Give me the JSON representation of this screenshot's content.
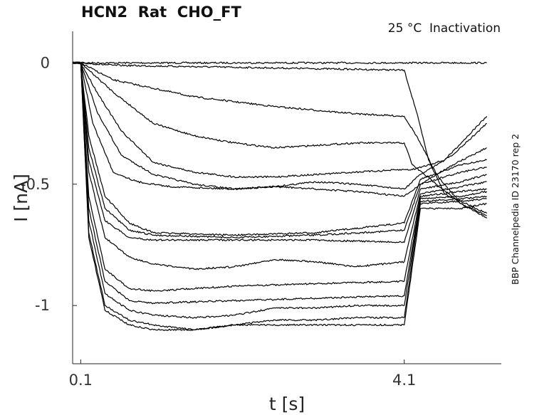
{
  "chart_data": {
    "type": "line",
    "title": "HCN2  Rat  CHO_FT",
    "annotation": "25 °C  Inactivation",
    "side_label": "BBP Channelpedia ID 23170 rep 2",
    "xlabel": "t [s]",
    "ylabel": "I [nA]",
    "xlim": [
      0.0,
      5.3
    ],
    "ylim": [
      -1.24,
      0.13
    ],
    "x_ticks": [
      {
        "value": 0.1,
        "label": "0.1"
      },
      {
        "value": 4.1,
        "label": "4.1"
      }
    ],
    "y_ticks": [
      {
        "value": 0,
        "label": "0"
      },
      {
        "value": -0.5,
        "label": "-0.5"
      },
      {
        "value": -1,
        "label": "-1"
      }
    ],
    "grid": false,
    "legend": "none",
    "line_color": "#000000",
    "series": [
      {
        "values": [
          [
            0.0,
            0.0
          ],
          [
            0.1,
            0.0
          ],
          [
            4.1,
            0.0
          ],
          [
            4.1,
            0.0
          ],
          [
            5.12,
            0.0
          ]
        ]
      },
      {
        "values": [
          [
            0.0,
            0.0
          ],
          [
            0.1,
            0.0
          ],
          [
            0.5,
            -0.01
          ],
          [
            4.1,
            -0.03
          ],
          [
            4.25,
            -0.2
          ],
          [
            4.4,
            -0.4
          ],
          [
            4.6,
            -0.54
          ],
          [
            5.12,
            -0.62
          ]
        ]
      },
      {
        "values": [
          [
            0.0,
            0.0
          ],
          [
            0.1,
            0.0
          ],
          [
            0.5,
            -0.07
          ],
          [
            1.5,
            -0.14
          ],
          [
            2.5,
            -0.18
          ],
          [
            3.5,
            -0.21
          ],
          [
            4.1,
            -0.22
          ],
          [
            4.25,
            -0.3
          ],
          [
            4.5,
            -0.46
          ],
          [
            4.8,
            -0.58
          ],
          [
            5.12,
            -0.63
          ]
        ]
      },
      {
        "values": [
          [
            0.0,
            0.0
          ],
          [
            0.1,
            0.0
          ],
          [
            0.5,
            -0.12
          ],
          [
            1.0,
            -0.25
          ],
          [
            1.5,
            -0.3
          ],
          [
            2.0,
            -0.33
          ],
          [
            2.5,
            -0.35
          ],
          [
            3.0,
            -0.34
          ],
          [
            3.5,
            -0.33
          ],
          [
            4.1,
            -0.33
          ],
          [
            4.2,
            -0.42
          ],
          [
            4.5,
            -0.5
          ],
          [
            4.8,
            -0.58
          ],
          [
            5.12,
            -0.64
          ]
        ]
      },
      {
        "values": [
          [
            0.0,
            0.0
          ],
          [
            0.1,
            0.0
          ],
          [
            0.3,
            -0.12
          ],
          [
            0.6,
            -0.28
          ],
          [
            1.0,
            -0.41
          ],
          [
            1.5,
            -0.45
          ],
          [
            2.0,
            -0.47
          ],
          [
            2.5,
            -0.47
          ],
          [
            3.0,
            -0.46
          ],
          [
            3.5,
            -0.45
          ],
          [
            4.1,
            -0.44
          ],
          [
            4.2,
            -0.44
          ],
          [
            4.6,
            -0.4
          ],
          [
            5.12,
            -0.22
          ]
        ]
      },
      {
        "values": [
          [
            0.0,
            0.0
          ],
          [
            0.1,
            0.0
          ],
          [
            0.3,
            -0.2
          ],
          [
            0.6,
            -0.38
          ],
          [
            1.0,
            -0.46
          ],
          [
            1.5,
            -0.5
          ],
          [
            2.0,
            -0.52
          ],
          [
            2.5,
            -0.51
          ],
          [
            3.0,
            -0.49
          ],
          [
            3.5,
            -0.5
          ],
          [
            4.1,
            -0.52
          ],
          [
            4.3,
            -0.46
          ],
          [
            4.7,
            -0.38
          ],
          [
            5.12,
            -0.25
          ]
        ]
      },
      {
        "values": [
          [
            0.0,
            0.0
          ],
          [
            0.1,
            0.0
          ],
          [
            0.25,
            -0.25
          ],
          [
            0.5,
            -0.45
          ],
          [
            0.8,
            -0.49
          ],
          [
            1.2,
            -0.51
          ],
          [
            2.0,
            -0.52
          ],
          [
            2.5,
            -0.51
          ],
          [
            3.0,
            -0.52
          ],
          [
            3.5,
            -0.53
          ],
          [
            4.1,
            -0.55
          ],
          [
            4.3,
            -0.5
          ],
          [
            4.7,
            -0.42
          ],
          [
            5.12,
            -0.35
          ]
        ]
      },
      {
        "values": [
          [
            0.0,
            0.0
          ],
          [
            0.1,
            0.0
          ],
          [
            0.2,
            -0.3
          ],
          [
            0.4,
            -0.55
          ],
          [
            0.7,
            -0.66
          ],
          [
            1.0,
            -0.7
          ],
          [
            2.0,
            -0.71
          ],
          [
            3.0,
            -0.7
          ],
          [
            4.1,
            -0.66
          ],
          [
            4.3,
            -0.48
          ],
          [
            4.8,
            -0.42
          ],
          [
            5.12,
            -0.4
          ]
        ]
      },
      {
        "values": [
          [
            0.0,
            0.0
          ],
          [
            0.1,
            0.0
          ],
          [
            0.2,
            -0.35
          ],
          [
            0.4,
            -0.6
          ],
          [
            0.7,
            -0.69
          ],
          [
            1.0,
            -0.71
          ],
          [
            2.0,
            -0.72
          ],
          [
            3.0,
            -0.71
          ],
          [
            4.1,
            -0.69
          ],
          [
            4.3,
            -0.5
          ],
          [
            4.8,
            -0.45
          ],
          [
            5.12,
            -0.43
          ]
        ]
      },
      {
        "values": [
          [
            0.0,
            0.0
          ],
          [
            0.1,
            0.0
          ],
          [
            0.2,
            -0.4
          ],
          [
            0.4,
            -0.65
          ],
          [
            0.7,
            -0.72
          ],
          [
            1.0,
            -0.73
          ],
          [
            2.0,
            -0.73
          ],
          [
            3.0,
            -0.73
          ],
          [
            4.1,
            -0.74
          ],
          [
            4.3,
            -0.52
          ],
          [
            4.8,
            -0.49
          ],
          [
            5.12,
            -0.46
          ]
        ]
      },
      {
        "values": [
          [
            0.0,
            0.0
          ],
          [
            0.1,
            0.0
          ],
          [
            0.2,
            -0.45
          ],
          [
            0.4,
            -0.72
          ],
          [
            0.7,
            -0.8
          ],
          [
            1.0,
            -0.83
          ],
          [
            1.5,
            -0.85
          ],
          [
            2.0,
            -0.84
          ],
          [
            2.5,
            -0.81
          ],
          [
            3.0,
            -0.82
          ],
          [
            3.5,
            -0.84
          ],
          [
            4.1,
            -0.82
          ],
          [
            4.3,
            -0.54
          ],
          [
            4.8,
            -0.51
          ],
          [
            5.12,
            -0.49
          ]
        ]
      },
      {
        "values": [
          [
            0.0,
            0.0
          ],
          [
            0.1,
            0.0
          ],
          [
            0.2,
            -0.55
          ],
          [
            0.4,
            -0.85
          ],
          [
            0.7,
            -0.93
          ],
          [
            1.0,
            -0.94
          ],
          [
            2.0,
            -0.92
          ],
          [
            3.0,
            -0.91
          ],
          [
            4.1,
            -0.9
          ],
          [
            4.3,
            -0.55
          ],
          [
            4.8,
            -0.53
          ],
          [
            5.12,
            -0.52
          ]
        ]
      },
      {
        "values": [
          [
            0.0,
            0.0
          ],
          [
            0.1,
            0.0
          ],
          [
            0.2,
            -0.6
          ],
          [
            0.4,
            -0.9
          ],
          [
            0.7,
            -0.98
          ],
          [
            1.0,
            -0.99
          ],
          [
            2.0,
            -0.98
          ],
          [
            3.0,
            -0.97
          ],
          [
            4.1,
            -0.96
          ],
          [
            4.3,
            -0.56
          ],
          [
            4.8,
            -0.55
          ],
          [
            5.12,
            -0.53
          ]
        ]
      },
      {
        "values": [
          [
            0.0,
            0.0
          ],
          [
            0.1,
            0.0
          ],
          [
            0.2,
            -0.65
          ],
          [
            0.4,
            -0.95
          ],
          [
            0.7,
            -1.02
          ],
          [
            1.0,
            -1.04
          ],
          [
            1.5,
            -1.05
          ],
          [
            2.0,
            -1.04
          ],
          [
            2.5,
            -1.01
          ],
          [
            3.0,
            -1.01
          ],
          [
            3.5,
            -1.0
          ],
          [
            4.1,
            -1.0
          ],
          [
            4.3,
            -0.57
          ],
          [
            4.8,
            -0.56
          ],
          [
            5.12,
            -0.55
          ]
        ]
      },
      {
        "values": [
          [
            0.0,
            0.0
          ],
          [
            0.1,
            0.0
          ],
          [
            0.2,
            -0.7
          ],
          [
            0.4,
            -1.0
          ],
          [
            0.7,
            -1.06
          ],
          [
            1.0,
            -1.08
          ],
          [
            1.5,
            -1.1
          ],
          [
            2.0,
            -1.08
          ],
          [
            2.5,
            -1.06
          ],
          [
            3.0,
            -1.06
          ],
          [
            3.5,
            -1.05
          ],
          [
            4.1,
            -1.05
          ],
          [
            4.3,
            -0.58
          ],
          [
            4.8,
            -0.57
          ],
          [
            5.12,
            -0.56
          ]
        ]
      },
      {
        "values": [
          [
            0.0,
            0.0
          ],
          [
            0.1,
            0.0
          ],
          [
            0.2,
            -0.72
          ],
          [
            0.4,
            -1.02
          ],
          [
            0.7,
            -1.08
          ],
          [
            1.0,
            -1.1
          ],
          [
            1.5,
            -1.1
          ],
          [
            2.0,
            -1.08
          ],
          [
            2.5,
            -1.08
          ],
          [
            3.0,
            -1.08
          ],
          [
            3.5,
            -1.08
          ],
          [
            4.1,
            -1.08
          ],
          [
            4.3,
            -0.6
          ],
          [
            4.8,
            -0.6
          ],
          [
            5.12,
            -0.58
          ]
        ]
      }
    ]
  }
}
